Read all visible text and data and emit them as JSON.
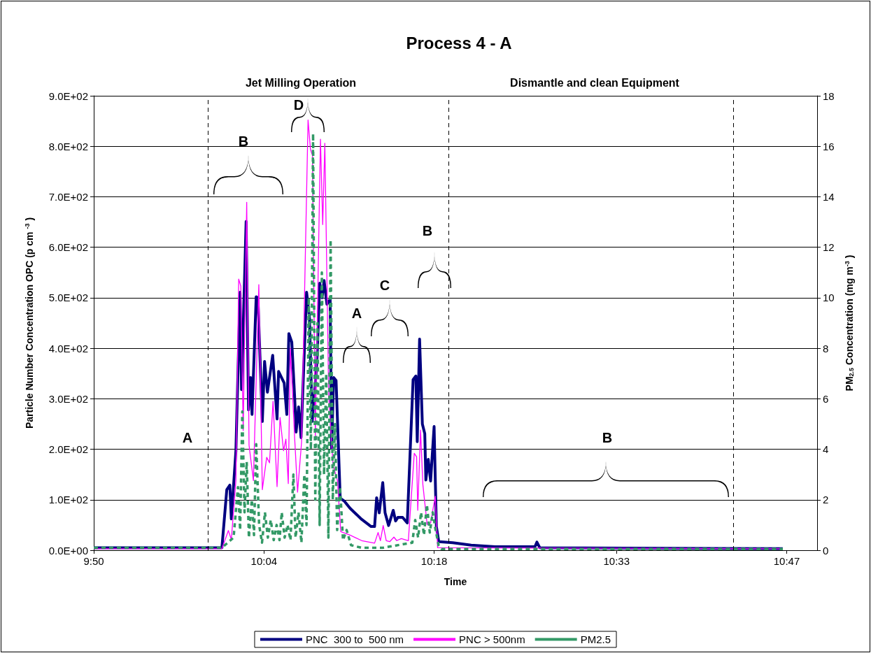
{
  "chart_data": {
    "type": "line",
    "title": "Process 4 - A",
    "xlabel": "Time",
    "ylabel": "Particle Number Concentration OPC (p cm $^{-3}$)",
    "y2label": "PM$_{2.5}$ Concentration (mg m$^{-3}$)",
    "xlim": [
      9.8333,
      10.825
    ],
    "xticks": [
      {
        "value": 9.8333,
        "label": "9:50"
      },
      {
        "value": 10.0667,
        "label": "10:04"
      },
      {
        "value": 10.3,
        "label": "10:18"
      },
      {
        "value": 10.55,
        "label": "10:33"
      },
      {
        "value": 10.7833,
        "label": "10:47"
      }
    ],
    "ylim": [
      0,
      900
    ],
    "yticks": [
      {
        "value": 0,
        "label": "0.0E+00"
      },
      {
        "value": 100,
        "label": "1.0E+02"
      },
      {
        "value": 200,
        "label": "2.0E+02"
      },
      {
        "value": 300,
        "label": "3.0E+02"
      },
      {
        "value": 400,
        "label": "4.0E+02"
      },
      {
        "value": 500,
        "label": "5.0E+02"
      },
      {
        "value": 600,
        "label": "6.0E+02"
      },
      {
        "value": 700,
        "label": "7.0E+02"
      },
      {
        "value": 800,
        "label": "8.0E+02"
      },
      {
        "value": 900,
        "label": "9.0E+02"
      }
    ],
    "y2lim": [
      0,
      18
    ],
    "y2ticks": [
      0,
      2,
      4,
      6,
      8,
      10,
      12,
      14,
      16,
      18
    ],
    "grid": "y",
    "legend": "bottom",
    "marker": "none",
    "series": [
      {
        "name": "PNC  300 to  500 nm",
        "color": "#000080",
        "line_style": "solid",
        "x": [
          9.8333,
          10.009,
          10.0157,
          10.0199,
          10.0219,
          10.0282,
          10.0339,
          10.0359,
          10.0422,
          10.0455,
          10.0483,
          10.0503,
          10.056,
          10.0583,
          10.0644,
          10.0675,
          10.0714,
          10.0786,
          10.0846,
          10.0867,
          10.0944,
          10.098,
          10.1008,
          10.1048,
          10.1088,
          10.1107,
          10.1141,
          10.1175,
          10.1251,
          10.129,
          10.1328,
          10.1392,
          10.1432,
          10.1463,
          10.1491,
          10.153,
          10.1574,
          10.1594,
          10.1622,
          10.1655,
          10.1712,
          10.177,
          10.1847,
          10.2007,
          10.2135,
          10.2183,
          10.2211,
          10.2247,
          10.2295,
          10.2327,
          10.2375,
          10.2439,
          10.2471,
          10.2502,
          10.2567,
          10.2631,
          10.2711,
          10.2749,
          10.2768,
          10.28,
          10.2838,
          10.2871,
          10.2886,
          10.2919,
          10.2951,
          10.2999,
          10.303,
          10.3063,
          10.3255,
          10.3507,
          10.3834,
          10.4381,
          10.4408,
          10.4448,
          10.7779
        ],
        "values": [
          5,
          5,
          120,
          129,
          62,
          197,
          511,
          318,
          651,
          278,
          342,
          269,
          502,
          500,
          255,
          374,
          313,
          386,
          260,
          354,
          331,
          269,
          429,
          412,
          301,
          234,
          284,
          223,
          511,
          461,
          255,
          371,
          529,
          500,
          534,
          487,
          497,
          202,
          342,
          336,
          103,
          97,
          83,
          61,
          47,
          47,
          104,
          74,
          134,
          74,
          49,
          79,
          58,
          65,
          65,
          54,
          338,
          345,
          215,
          418,
          250,
          231,
          139,
          180,
          137,
          245,
          47,
          17,
          15,
          10,
          7,
          7,
          16,
          5,
          3
        ]
      },
      {
        "name": "PNC > 500nm",
        "color": "#ff00ff",
        "line_style": "solid",
        "x": [
          9.8333,
          10.009,
          10.0179,
          10.0219,
          10.0282,
          10.032,
          10.0349,
          10.0382,
          10.043,
          10.0462,
          10.0522,
          10.0596,
          10.0644,
          10.0704,
          10.0743,
          10.0791,
          10.0846,
          10.0887,
          10.0935,
          10.0967,
          10.1,
          10.1028,
          10.1088,
          10.1127,
          10.1182,
          10.1271,
          10.1304,
          10.1331,
          10.1371,
          10.1441,
          10.1472,
          10.1501,
          10.1554,
          10.1614,
          10.1674,
          10.1719,
          10.1847,
          10.2007,
          10.2183,
          10.2231,
          10.2263,
          10.2301,
          10.2343,
          10.2391,
          10.2448,
          10.2487,
          10.255,
          10.2646,
          10.2727,
          10.2759,
          10.2775,
          10.2813,
          10.2845,
          10.2903,
          10.2951,
          10.3015,
          10.3047,
          10.7779
        ],
        "values": [
          3,
          3,
          39,
          21,
          138,
          537,
          523,
          237,
          689,
          208,
          138,
          526,
          120,
          184,
          173,
          295,
          126,
          263,
          197,
          220,
          132,
          400,
          220,
          115,
          214,
          852,
          794,
          782,
          226,
          814,
          645,
          806,
          307,
          168,
          138,
          37,
          30,
          19,
          14,
          35,
          19,
          49,
          19,
          17,
          26,
          19,
          23,
          19,
          192,
          185,
          79,
          238,
          130,
          51,
          54,
          107,
          5,
          3
        ]
      },
      {
        "name": "PM2.5",
        "color": "#339966",
        "axis": "y2",
        "line_style": "dashed",
        "x": [
          9.8333,
          10.009,
          10.025,
          10.031,
          10.034,
          10.037,
          10.04,
          10.043,
          10.046,
          10.05,
          10.053,
          10.056,
          10.06,
          10.064,
          10.068,
          10.072,
          10.076,
          10.08,
          10.084,
          10.088,
          10.091,
          10.095,
          10.099,
          10.103,
          10.107,
          10.11,
          10.114,
          10.118,
          10.122,
          10.125,
          10.128,
          10.131,
          10.134,
          10.137,
          10.14,
          10.143,
          10.146,
          10.149,
          10.152,
          10.155,
          10.158,
          10.161,
          10.164,
          10.167,
          10.171,
          10.175,
          10.18,
          10.186,
          10.2,
          10.23,
          10.27,
          10.274,
          10.278,
          10.282,
          10.286,
          10.29,
          10.294,
          10.298,
          10.302,
          10.306,
          10.31,
          10.778
        ],
        "values": [
          0.1,
          0.1,
          0.5,
          2.5,
          0.8,
          5.5,
          1.5,
          3.5,
          0.5,
          2,
          0.6,
          4.2,
          1,
          0.3,
          1.5,
          0.5,
          1.2,
          0.4,
          1,
          0.4,
          1.5,
          0.5,
          1,
          0.4,
          3,
          0.5,
          1.5,
          0.3,
          3,
          1,
          10,
          4,
          16.5,
          2,
          9,
          1,
          11,
          3,
          7,
          0.5,
          12.3,
          2,
          5,
          0.8,
          2.5,
          0.4,
          0.8,
          0.2,
          0.1,
          0.1,
          0.3,
          1.2,
          0.5,
          1.5,
          0.6,
          1.8,
          0.7,
          1.5,
          0.8,
          0.2,
          0.05,
          0.05
        ]
      }
    ],
    "ref_lines": [
      {
        "axis": "x",
        "value": 9.9907,
        "color": "#000000",
        "line_style": "dashed"
      },
      {
        "axis": "x",
        "value": 10.32,
        "color": "#000000",
        "line_style": "dashed"
      },
      {
        "axis": "x",
        "value": 10.714,
        "color": "#000000",
        "line_style": "dashed"
      }
    ],
    "annotations": [
      "Jet Milling Operation",
      "Dismantle and clean Equipment",
      "A",
      "B",
      "D",
      "A",
      "C",
      "B",
      "B"
    ]
  }
}
